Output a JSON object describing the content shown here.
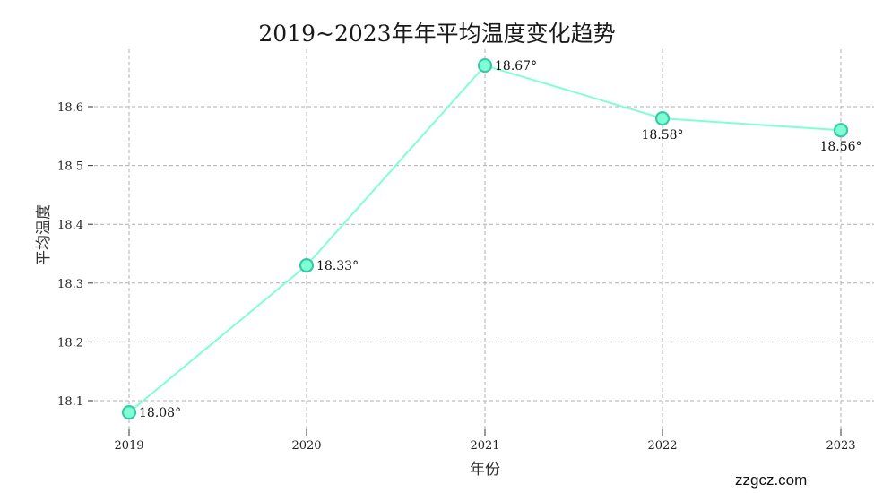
{
  "chart_data": {
    "type": "line",
    "title": "2019~2023年年平均温度变化趋势",
    "xlabel": "年份",
    "ylabel": "平均温度",
    "categories": [
      "2019",
      "2020",
      "2021",
      "2022",
      "2023"
    ],
    "series": [
      {
        "name": "平均温度",
        "values": [
          18.08,
          18.33,
          18.67,
          18.58,
          18.56
        ],
        "color": "#7FFFD4",
        "marker_edge": "#3CC8A8"
      }
    ],
    "data_labels": [
      "18.08°",
      "18.33°",
      "18.67°",
      "18.58°",
      "18.56°"
    ],
    "yticks": [
      "18.1",
      "18.2",
      "18.3",
      "18.4",
      "18.5",
      "18.6"
    ],
    "ylim": [
      18.05,
      18.7
    ],
    "grid": true,
    "grid_style": "dashed",
    "legend": "none"
  },
  "watermark": "zzgcz.com"
}
